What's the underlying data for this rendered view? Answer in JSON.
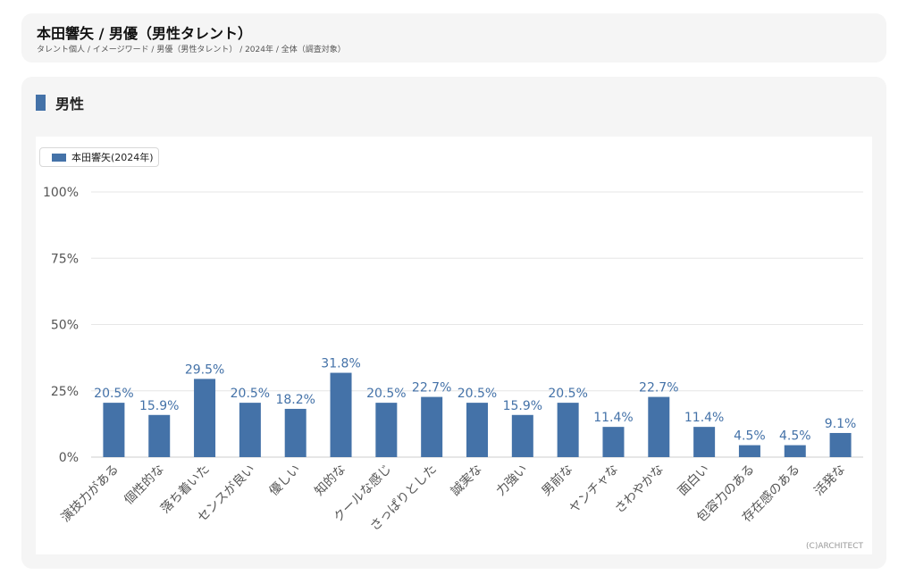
{
  "header": {
    "title": "本田響矢 / 男優（男性タレント）",
    "breadcrumb": "タレント個人 / イメージワード / 男優（男性タレント） / 2024年 / 全体（調査対象）"
  },
  "section": {
    "title": "男性"
  },
  "footer": {
    "copyright": "(C)ARCHITECT"
  },
  "colors": {
    "bar": "#4472a8",
    "value_label": "#4472a8",
    "grid": "#e6e6e6",
    "tick_label": "#555555"
  },
  "chart_data": {
    "type": "bar",
    "categories": [
      "演技力がある",
      "個性的な",
      "落ち着いた",
      "センスが良い",
      "優しい",
      "知的な",
      "クールな感じ",
      "さっぱりとした",
      "誠実な",
      "力強い",
      "男前な",
      "ヤンチャな",
      "さわやかな",
      "面白い",
      "包容力のある",
      "存在感のある",
      "活発な"
    ],
    "series": [
      {
        "name": "本田響矢(2024年)",
        "values": [
          20.5,
          15.9,
          29.5,
          20.5,
          18.2,
          31.8,
          20.5,
          22.7,
          20.5,
          15.9,
          20.5,
          11.4,
          22.7,
          11.4,
          4.5,
          4.5,
          9.1
        ],
        "labels": [
          "20.5%",
          "15.9%",
          "29.5%",
          "20.5%",
          "18.2%",
          "31.8%",
          "20.5%",
          "22.7%",
          "20.5%",
          "15.9%",
          "20.5%",
          "11.4%",
          "22.7%",
          "11.4%",
          "4.5%",
          "4.5%",
          "9.1%"
        ]
      }
    ],
    "ylim": [
      0,
      100
    ],
    "yticks": [
      0,
      25,
      50,
      75,
      100
    ],
    "ytick_labels": [
      "0%",
      "25%",
      "50%",
      "75%",
      "100%"
    ],
    "legend_position": "top-left",
    "grid": true
  }
}
